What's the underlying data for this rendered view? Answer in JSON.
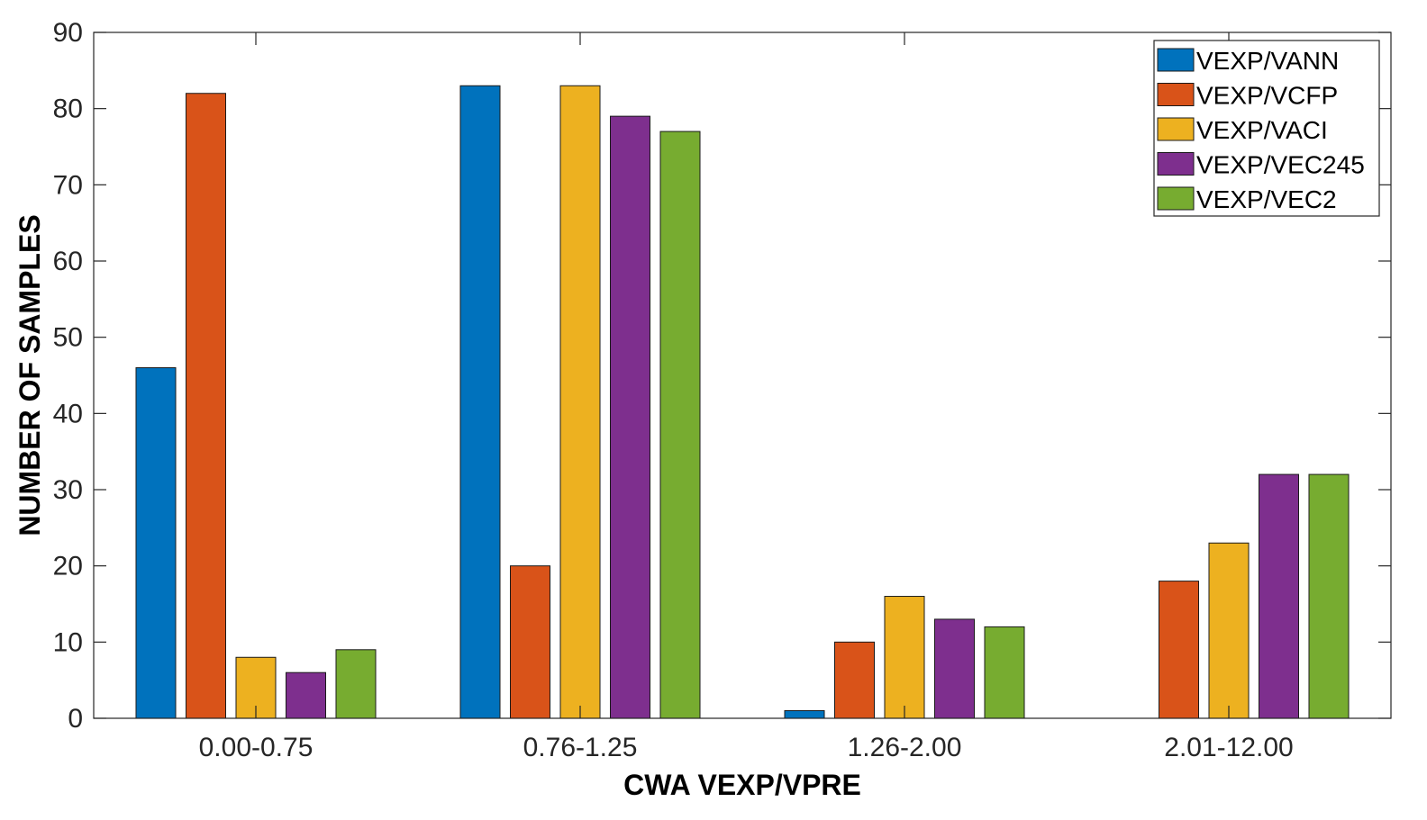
{
  "chart_data": {
    "type": "bar",
    "xlabel": "CWA VEXP/VPRE",
    "ylabel": "NUMBER OF SAMPLES",
    "ylim": [
      0,
      90
    ],
    "yticks": [
      0,
      10,
      20,
      30,
      40,
      50,
      60,
      70,
      80,
      90
    ],
    "grid": false,
    "legend_position": "top-right",
    "categories": [
      "0.00-0.75",
      "0.76-1.25",
      "1.26-2.00",
      "2.01-12.00"
    ],
    "series": [
      {
        "name": "VEXP/VANN",
        "color": "#0072BD",
        "values": [
          46,
          83,
          1,
          0
        ]
      },
      {
        "name": "VEXP/VCFP",
        "color": "#D95319",
        "values": [
          82,
          20,
          10,
          18
        ]
      },
      {
        "name": "VEXP/VACI",
        "color": "#EDB120",
        "values": [
          8,
          83,
          16,
          23
        ]
      },
      {
        "name": "VEXP/VEC245",
        "color": "#7E2F8E",
        "values": [
          6,
          79,
          13,
          32
        ]
      },
      {
        "name": "VEXP/VEC2",
        "color": "#77AC30",
        "values": [
          9,
          77,
          12,
          32
        ]
      }
    ]
  }
}
